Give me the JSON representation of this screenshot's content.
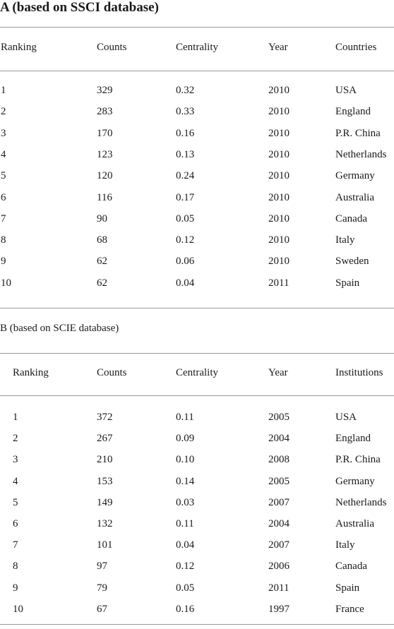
{
  "section_a": {
    "title": "A (based on SSCI database)",
    "headers": [
      "Ranking",
      "Counts",
      "Centrality",
      "Year",
      "Countries"
    ],
    "rows": [
      [
        "1",
        "329",
        "0.32",
        "2010",
        "USA"
      ],
      [
        "2",
        "283",
        "0.33",
        "2010",
        "England"
      ],
      [
        "3",
        "170",
        "0.16",
        "2010",
        "P.R. China"
      ],
      [
        "4",
        "123",
        "0.13",
        "2010",
        "Netherlands"
      ],
      [
        "5",
        "120",
        "0.24",
        "2010",
        "Germany"
      ],
      [
        "6",
        "116",
        "0.17",
        "2010",
        "Australia"
      ],
      [
        "7",
        "90",
        "0.05",
        "2010",
        "Canada"
      ],
      [
        "8",
        "68",
        "0.12",
        "2010",
        "Italy"
      ],
      [
        "9",
        "62",
        "0.06",
        "2010",
        "Sweden"
      ],
      [
        "10",
        "62",
        "0.04",
        "2011",
        "Spain"
      ]
    ]
  },
  "section_b": {
    "title": "B (based on SCIE database)",
    "headers": [
      "Ranking",
      "Counts",
      "Centrality",
      "Year",
      "Institutions"
    ],
    "rows": [
      [
        "1",
        "372",
        "0.11",
        "2005",
        "USA"
      ],
      [
        "2",
        "267",
        "0.09",
        "2004",
        "England"
      ],
      [
        "3",
        "210",
        "0.10",
        "2008",
        "P.R. China"
      ],
      [
        "4",
        "153",
        "0.14",
        "2005",
        "Germany"
      ],
      [
        "5",
        "149",
        "0.03",
        "2007",
        "Netherlands"
      ],
      [
        "6",
        "132",
        "0.11",
        "2004",
        "Australia"
      ],
      [
        "7",
        "101",
        "0.04",
        "2007",
        "Italy"
      ],
      [
        "8",
        "97",
        "0.12",
        "2006",
        "Canada"
      ],
      [
        "9",
        "79",
        "0.05",
        "2011",
        "Spain"
      ],
      [
        "10",
        "67",
        "0.16",
        "1997",
        "France"
      ]
    ]
  }
}
